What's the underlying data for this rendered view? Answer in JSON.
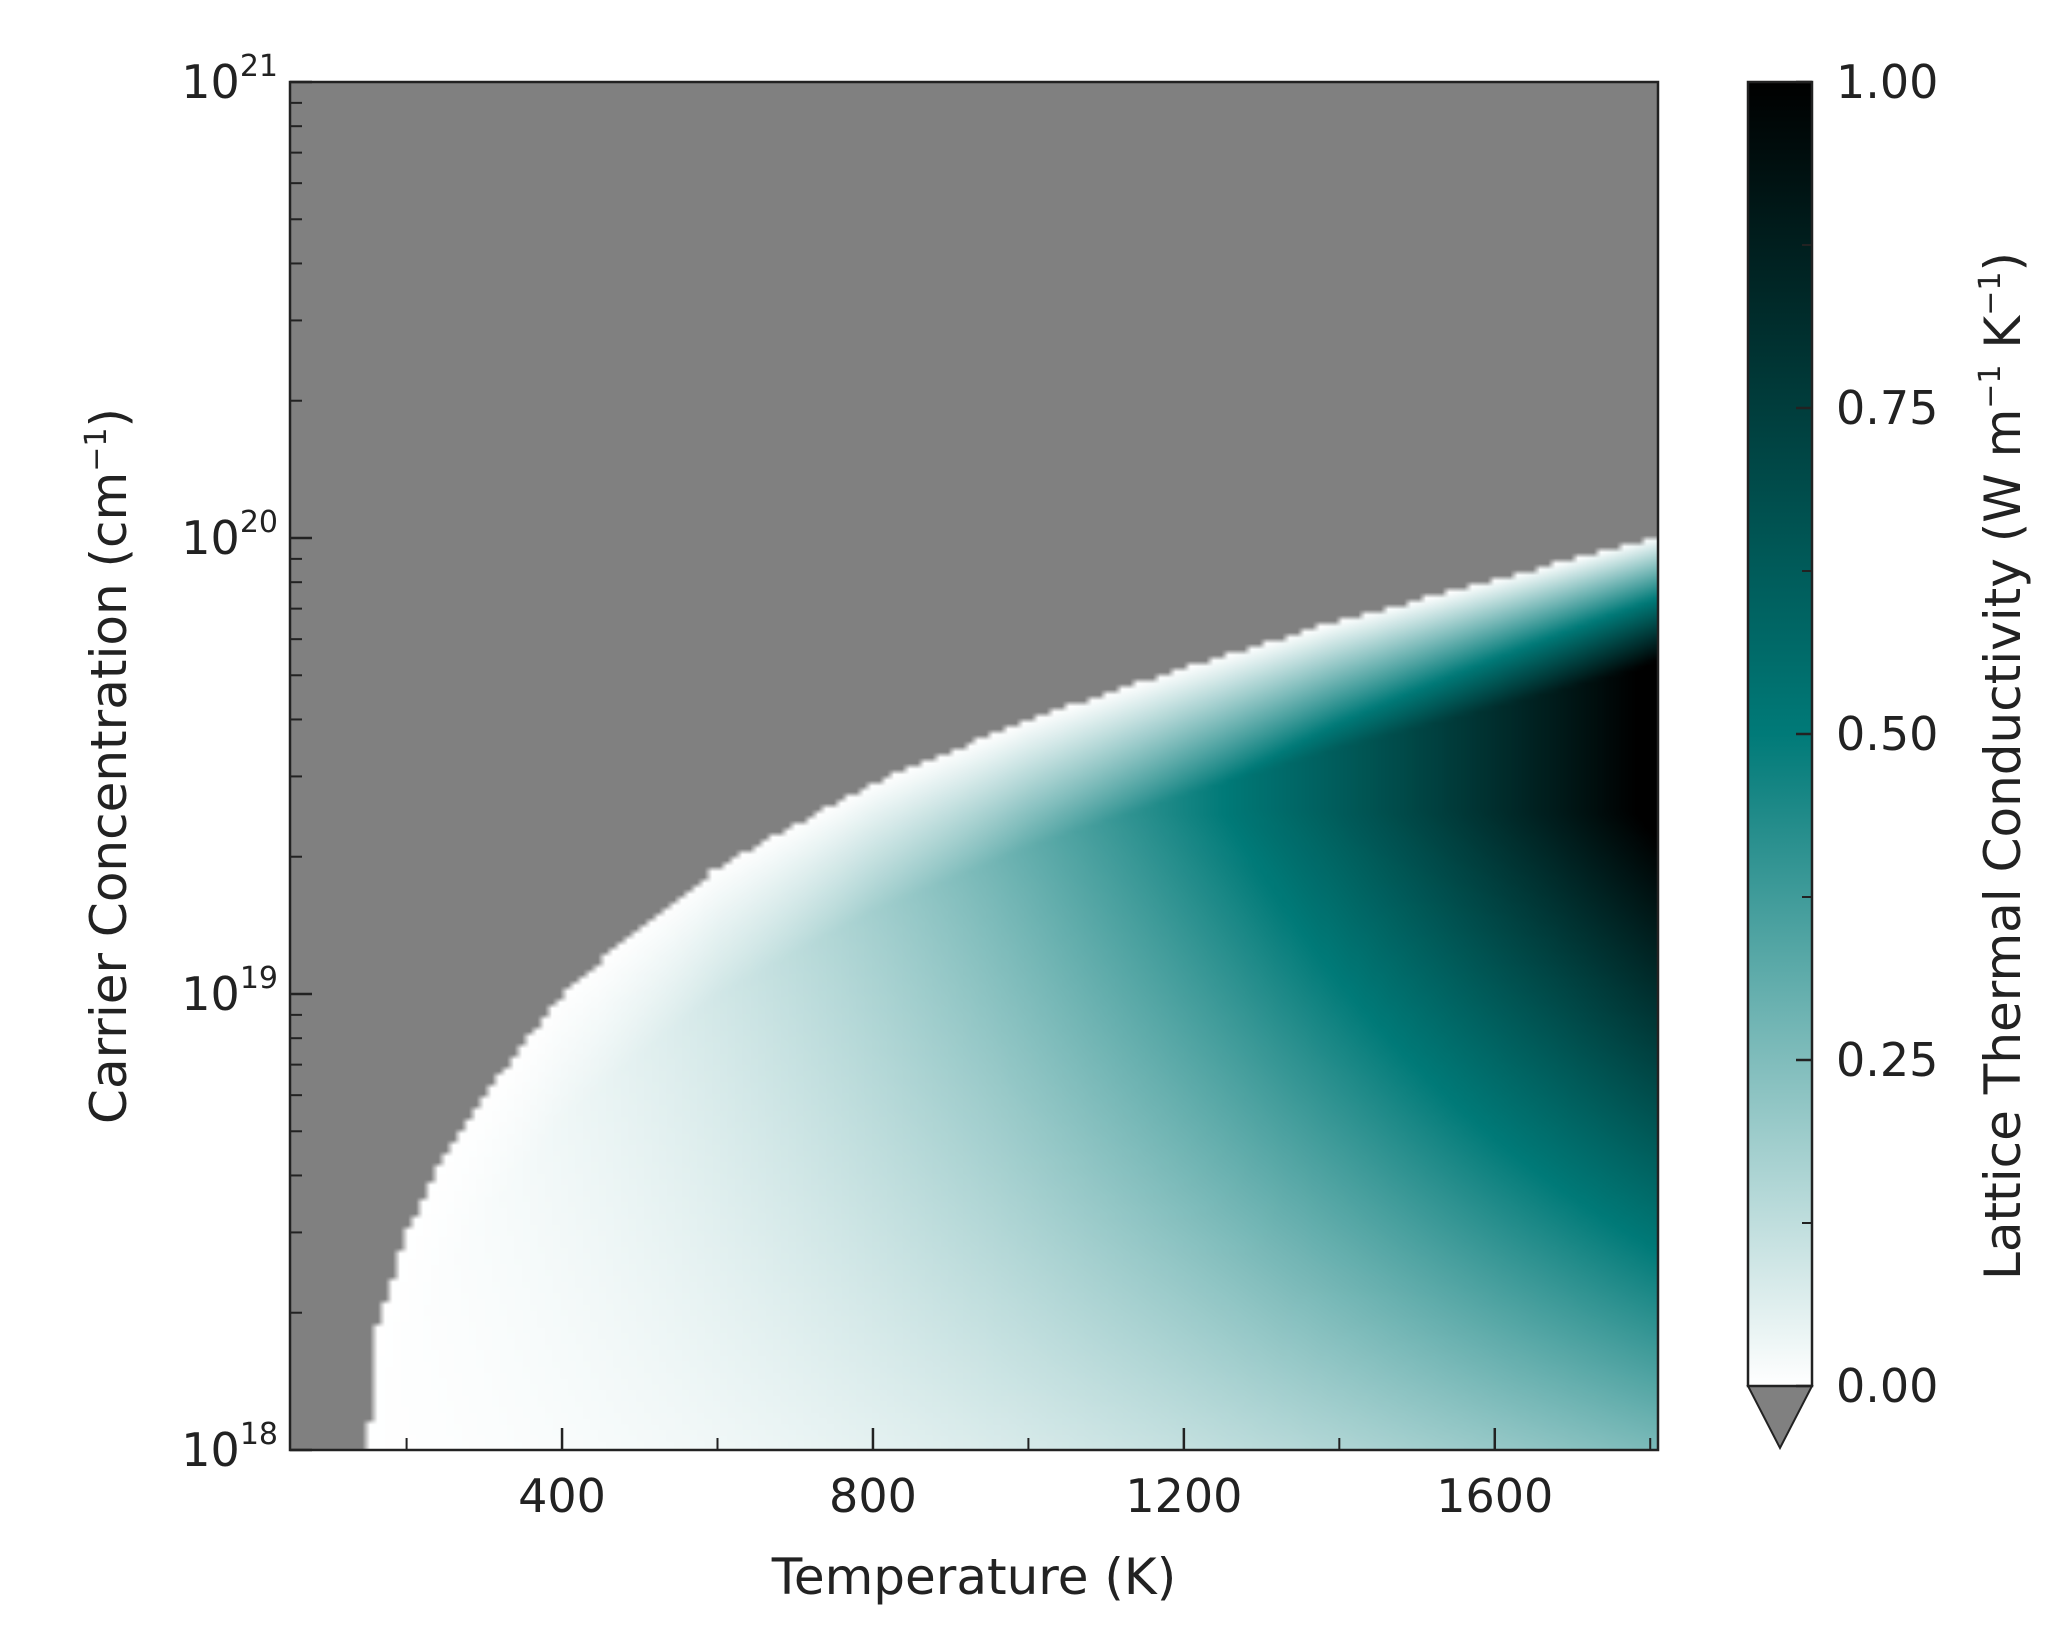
{
  "chart_data": {
    "type": "heatmap",
    "title": "",
    "xlabel": "Temperature (K)",
    "ylabel": {
      "text": "Carrier Concentration (cm",
      "sup": "−1",
      "tail": ")"
    },
    "colorbar_label": {
      "pre": "Lattice Thermal Conductivity (W m",
      "sup1": "−1",
      "mid": " K",
      "sup2": "−1",
      "tail": ")"
    },
    "x_range": [
      50,
      1810
    ],
    "x_ticks": [
      {
        "value": 400,
        "label": "400"
      },
      {
        "value": 800,
        "label": "800"
      },
      {
        "value": 1200,
        "label": "1200"
      },
      {
        "value": 1600,
        "label": "1600"
      }
    ],
    "x_minor_ticks": [
      200,
      600,
      1000,
      1400,
      1800
    ],
    "y_scale": "log",
    "y_range": [
      1e+18,
      1e+21
    ],
    "y_ticks": [
      {
        "value": 1e+18,
        "base": "10",
        "exp": "18"
      },
      {
        "value": 1e+19,
        "base": "10",
        "exp": "19"
      },
      {
        "value": 1e+20,
        "base": "10",
        "exp": "20"
      },
      {
        "value": 1e+21,
        "base": "10",
        "exp": "21"
      }
    ],
    "colorbar": {
      "range": [
        0,
        1
      ],
      "ticks": [
        {
          "value": 0,
          "label": "0.00"
        },
        {
          "value": 0.25,
          "label": "0.25"
        },
        {
          "value": 0.5,
          "label": "0.50"
        },
        {
          "value": 0.75,
          "label": "0.75"
        },
        {
          "value": 1,
          "label": "1.00"
        }
      ],
      "minor_ticks": [
        0.125,
        0.375,
        0.625,
        0.875
      ],
      "extend": "min",
      "under_color": "#808080",
      "colors": [
        "#ffffff",
        "#007a78",
        "#000000"
      ]
    },
    "boundary": {
      "description": "upper carrier-concentration limit; above it the value is below range",
      "points": [
        {
          "x": 150,
          "y": 1e+18
        },
        {
          "x": 160,
          "y": 1.8e+18
        },
        {
          "x": 200,
          "y": 3e+18
        },
        {
          "x": 250,
          "y": 4.5e+18
        },
        {
          "x": 300,
          "y": 6e+18
        },
        {
          "x": 400,
          "y": 1e+19
        },
        {
          "x": 500,
          "y": 1.4e+19
        },
        {
          "x": 600,
          "y": 1.9e+19
        },
        {
          "x": 800,
          "y": 2.9e+19
        },
        {
          "x": 1000,
          "y": 4e+19
        },
        {
          "x": 1200,
          "y": 5.2e+19
        },
        {
          "x": 1400,
          "y": 6.6e+19
        },
        {
          "x": 1600,
          "y": 8.1e+19
        },
        {
          "x": 1800,
          "y": 1e+20
        }
      ]
    },
    "field_samples": [
      {
        "x": 1800,
        "y": 2.5e+19,
        "value": 1.0
      },
      {
        "x": 1700,
        "y": 4e+19,
        "value": 0.9
      },
      {
        "x": 1300,
        "y": 1e+19,
        "value": 0.5
      },
      {
        "x": 1600,
        "y": 3.5e+18,
        "value": 0.5
      },
      {
        "x": 1800,
        "y": 1e+18,
        "value": 0.25
      },
      {
        "x": 1000,
        "y": 2e+18,
        "value": 0.1
      },
      {
        "x": 400,
        "y": 2e+18,
        "value": 0.0
      }
    ]
  }
}
